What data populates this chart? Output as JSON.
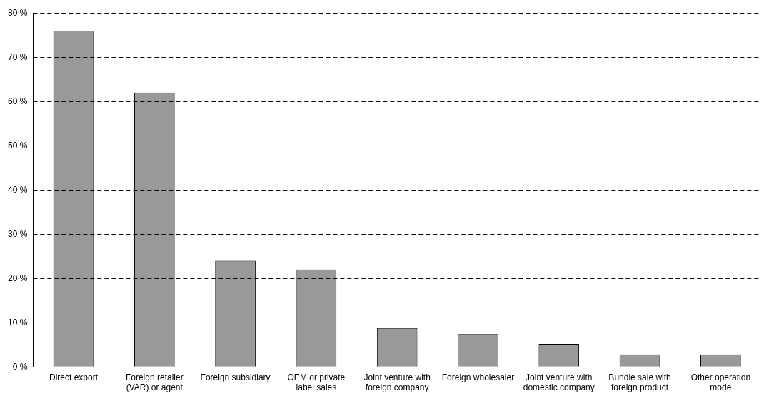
{
  "chart_data": {
    "type": "bar",
    "categories": [
      "Direct export",
      "Foreign retailer (VAR) or agent",
      "Foreign subsidiary",
      "OEM or private label sales",
      "Joint venture with foreign company",
      "Foreign wholesaler",
      "Joint venture with domestic company",
      "Bundle sale with foreign product",
      "Other operation mode"
    ],
    "values": [
      76,
      62,
      24,
      22,
      8.8,
      7.4,
      5.2,
      2.8,
      2.8
    ],
    "color": "#999999",
    "ylim": [
      0,
      80
    ],
    "yticks": [
      {
        "value": 0,
        "label": "0 %"
      },
      {
        "value": 10,
        "label": "10 %"
      },
      {
        "value": 20,
        "label": "20 %"
      },
      {
        "value": 30,
        "label": "30 %"
      },
      {
        "value": 40,
        "label": "40 %"
      },
      {
        "value": 50,
        "label": "50 %"
      },
      {
        "value": 60,
        "label": "60 %"
      },
      {
        "value": 70,
        "label": "70 %"
      },
      {
        "value": 80,
        "label": "80 %"
      }
    ],
    "grid": "y",
    "line_style": "dashed",
    "legend": false
  }
}
